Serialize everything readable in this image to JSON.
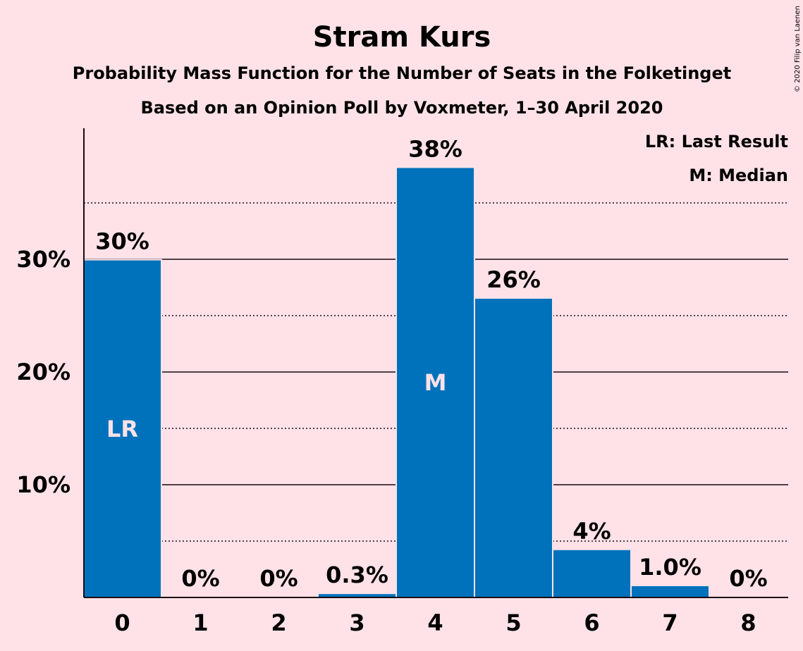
{
  "chart_data": {
    "type": "bar",
    "title": "Stram Kurs",
    "subtitle": "Probability Mass Function for the Number of Seats in the Folketinget",
    "subtitle2": "Based on an Opinion Poll by Voxmeter, 1–30 April 2020",
    "categories": [
      "0",
      "1",
      "2",
      "3",
      "4",
      "5",
      "6",
      "7",
      "8"
    ],
    "values": [
      29.9,
      0,
      0,
      0.3,
      38.1,
      26.5,
      4.2,
      1.0,
      0
    ],
    "value_labels": [
      "30%",
      "0%",
      "0%",
      "0.3%",
      "38%",
      "26%",
      "4%",
      "1.0%",
      "0%"
    ],
    "markers": [
      {
        "category": "0",
        "text": "LR"
      },
      {
        "category": "4",
        "text": "M"
      }
    ],
    "legend": [
      "LR: Last Result",
      "M: Median"
    ],
    "legend_position": "top-right",
    "ylim": [
      0,
      40
    ],
    "yticks": [
      10,
      20,
      30
    ],
    "ytick_labels": [
      "10%",
      "20%",
      "30%"
    ],
    "minor_gridlines": [
      5,
      15,
      25,
      35
    ],
    "grid": true,
    "bar_color": "#0072BB",
    "copyright": "© 2020 Filip van Laenen"
  }
}
